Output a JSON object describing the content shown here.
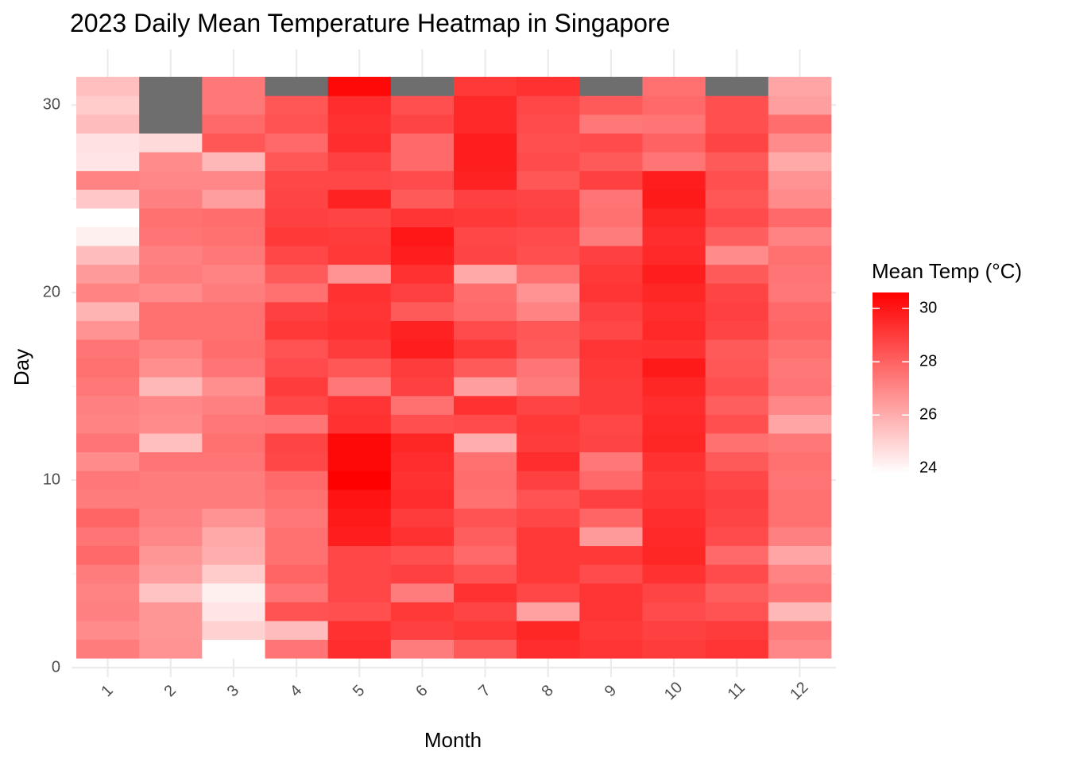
{
  "chart_data": {
    "type": "heatmap",
    "title": "2023 Daily Mean Temperature Heatmap in Singapore",
    "xlabel": "Month",
    "ylabel": "Day",
    "x_ticks": [
      "1",
      "2",
      "3",
      "4",
      "5",
      "6",
      "7",
      "8",
      "9",
      "10",
      "11",
      "12"
    ],
    "y_ticks": [
      "0",
      "10",
      "20",
      "30"
    ],
    "xlim": [
      0.5,
      12.5
    ],
    "ylim": [
      0,
      31.5
    ],
    "legend": {
      "title": "Mean Temp (°C)",
      "ticks": [
        "24",
        "26",
        "28",
        "30"
      ],
      "tick_values": [
        24,
        26,
        28,
        30
      ],
      "min": 23.8,
      "max": 30.6,
      "low_color": "#ffffff",
      "high_color": "#ff0000",
      "position": "right"
    },
    "missing_color": "#6e6e6e",
    "grid": true,
    "months": [
      1,
      2,
      3,
      4,
      5,
      6,
      7,
      8,
      9,
      10,
      11,
      12
    ],
    "days": [
      1,
      2,
      3,
      4,
      5,
      6,
      7,
      8,
      9,
      10,
      11,
      12,
      13,
      14,
      15,
      16,
      17,
      18,
      19,
      20,
      21,
      22,
      23,
      24,
      25,
      26,
      27,
      28,
      29,
      30,
      31
    ],
    "values": [
      [
        27.3,
        26.9,
        27.2,
        27.1,
        27.3,
        27.8,
        27.5,
        27.9,
        27.3,
        27.4,
        26.9,
        27.5,
        27.1,
        27.2,
        27.4,
        27.6,
        27.5,
        26.7,
        25.8,
        27.1,
        26.5,
        25.6,
        24.2,
        23.8,
        25.3,
        27.1,
        24.5,
        24.6,
        25.6,
        25.2,
        25.5
      ],
      [
        26.7,
        26.6,
        26.6,
        25.4,
        26.4,
        26.6,
        27.0,
        27.2,
        27.3,
        27.3,
        27.5,
        25.5,
        26.9,
        27.0,
        25.7,
        26.8,
        27.1,
        27.6,
        27.6,
        26.9,
        27.3,
        27.2,
        27.5,
        27.6,
        27.2,
        27.0,
        26.9,
        24.8,
        null,
        null,
        null
      ],
      [
        23.8,
        25.0,
        24.5,
        24.2,
        25.2,
        26.0,
        26.1,
        26.7,
        27.3,
        27.3,
        27.5,
        27.6,
        27.4,
        27.2,
        26.8,
        27.5,
        27.7,
        27.6,
        27.6,
        27.3,
        27.1,
        27.4,
        27.6,
        27.7,
        26.4,
        27.0,
        25.7,
        28.3,
        27.8,
        27.4,
        27.4
      ],
      [
        27.5,
        25.6,
        28.4,
        27.5,
        27.9,
        27.6,
        27.6,
        27.4,
        27.6,
        27.8,
        28.7,
        28.8,
        27.5,
        28.7,
        29.0,
        28.6,
        28.4,
        29.1,
        28.9,
        27.6,
        28.2,
        28.7,
        29.1,
        28.9,
        28.8,
        28.7,
        28.3,
        27.8,
        28.4,
        28.3,
        null
      ],
      [
        29.4,
        29.3,
        28.5,
        28.7,
        28.7,
        28.7,
        29.8,
        29.9,
        30.1,
        30.6,
        30.4,
        30.4,
        29.3,
        29.2,
        27.4,
        28.3,
        29.0,
        29.3,
        29.2,
        29.3,
        26.7,
        29.1,
        29.0,
        28.8,
        29.7,
        28.7,
        28.9,
        29.4,
        29.3,
        29.4,
        30.4
      ],
      [
        27.3,
        28.9,
        29.1,
        27.3,
        28.9,
        28.5,
        29.3,
        29.0,
        29.4,
        29.3,
        29.4,
        29.6,
        28.5,
        27.6,
        28.9,
        29.0,
        29.8,
        29.7,
        28.2,
        28.9,
        29.3,
        29.8,
        30.0,
        29.2,
        28.2,
        28.6,
        27.8,
        27.8,
        28.8,
        28.5,
        null
      ],
      [
        28.2,
        29.1,
        28.8,
        29.3,
        28.4,
        27.8,
        28.1,
        28.4,
        27.6,
        27.7,
        27.6,
        26.0,
        28.6,
        29.3,
        26.4,
        28.2,
        29.1,
        28.6,
        27.8,
        27.7,
        26.1,
        28.8,
        28.7,
        29.1,
        28.9,
        29.7,
        29.8,
        29.8,
        29.5,
        29.5,
        29.1
      ],
      [
        29.4,
        29.6,
        26.3,
        28.7,
        29.1,
        29.1,
        29.1,
        28.7,
        28.4,
        28.9,
        29.4,
        29.0,
        29.1,
        28.8,
        27.3,
        27.5,
        28.2,
        28.3,
        27.1,
        26.7,
        27.6,
        28.5,
        28.6,
        28.9,
        28.8,
        28.3,
        28.6,
        28.5,
        28.6,
        28.7,
        29.3
      ],
      [
        29.2,
        29.1,
        29.2,
        29.2,
        28.6,
        29.1,
        26.5,
        27.9,
        28.9,
        27.8,
        27.4,
        28.8,
        28.7,
        29.0,
        29.0,
        29.1,
        29.2,
        28.7,
        28.9,
        29.2,
        29.1,
        28.9,
        27.3,
        27.6,
        27.5,
        28.9,
        28.2,
        28.6,
        27.4,
        28.2,
        null
      ],
      [
        29.0,
        28.9,
        28.6,
        28.8,
        29.3,
        29.6,
        29.5,
        29.4,
        29.2,
        29.1,
        29.3,
        29.6,
        29.5,
        29.4,
        29.6,
        29.9,
        29.3,
        29.5,
        29.4,
        29.6,
        29.8,
        29.5,
        29.4,
        29.6,
        29.9,
        29.8,
        27.5,
        28.0,
        27.5,
        27.8,
        27.6
      ],
      [
        29.2,
        29.0,
        28.4,
        28.1,
        28.6,
        27.8,
        28.6,
        28.8,
        28.9,
        28.7,
        28.2,
        27.6,
        28.5,
        28.1,
        28.5,
        28.3,
        28.2,
        28.8,
        28.9,
        28.8,
        28.2,
        26.9,
        28.1,
        28.6,
        28.3,
        28.5,
        28.2,
        28.8,
        28.5,
        28.5,
        null
      ],
      [
        27.0,
        27.3,
        25.7,
        27.5,
        27.1,
        26.2,
        27.2,
        27.6,
        27.6,
        27.5,
        27.6,
        27.4,
        26.2,
        27.0,
        27.5,
        27.4,
        27.6,
        27.9,
        27.8,
        27.4,
        27.5,
        27.6,
        27.1,
        27.8,
        26.9,
        26.7,
        26.1,
        26.9,
        27.7,
        26.4,
        26.2
      ]
    ]
  }
}
